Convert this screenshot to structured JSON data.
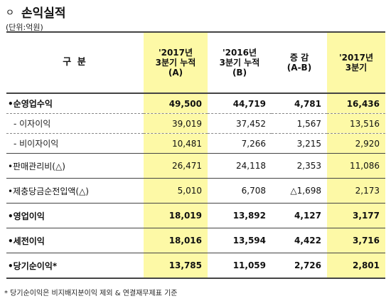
{
  "title": {
    "bullet": "ㅇ",
    "text": "손익실적"
  },
  "unit": "(단위:억원)",
  "headers": [
    {
      "line1": "구 분",
      "line2": "",
      "line3": ""
    },
    {
      "line1": "'2017년",
      "line2": "3분기 누적",
      "line3": "(A)"
    },
    {
      "line1": "'2016년",
      "line2": "3분기 누적",
      "line3": "(B)"
    },
    {
      "line1": "증 감",
      "line2": "(A-B)",
      "line3": ""
    },
    {
      "line1": "'2017년",
      "line2": "3분기",
      "line3": ""
    }
  ],
  "rows": [
    {
      "label": "•순영업수익",
      "a": "49,500",
      "b": "44,719",
      "diff": "4,781",
      "q3": "16,436"
    },
    {
      "label": "- 이자이익",
      "a": "39,019",
      "b": "37,452",
      "diff": "1,567",
      "q3": "13,516"
    },
    {
      "label": "- 비이자이익",
      "a": "10,481",
      "b": "7,266",
      "diff": "3,215",
      "q3": "2,920"
    },
    {
      "label": "•판매관리비(△)",
      "a": "26,471",
      "b": "24,118",
      "diff": "2,353",
      "q3": "11,086"
    },
    {
      "label": "•제충당금순전입액(△)",
      "a": "5,010",
      "b": "6,708",
      "diff": "△1,698",
      "q3": "2,173"
    },
    {
      "label": "•영업이익",
      "a": "18,019",
      "b": "13,892",
      "diff": "4,127",
      "q3": "3,177"
    },
    {
      "label": "•세전이익",
      "a": "18,016",
      "b": "13,594",
      "diff": "4,422",
      "q3": "3,716"
    },
    {
      "label": "•당기순이익*",
      "a": "13,785",
      "b": "11,059",
      "diff": "2,726",
      "q3": "2,801"
    }
  ],
  "footnote": "* 당기순이익은 비지배지분이익 제외 & 연결재무제표 기준"
}
